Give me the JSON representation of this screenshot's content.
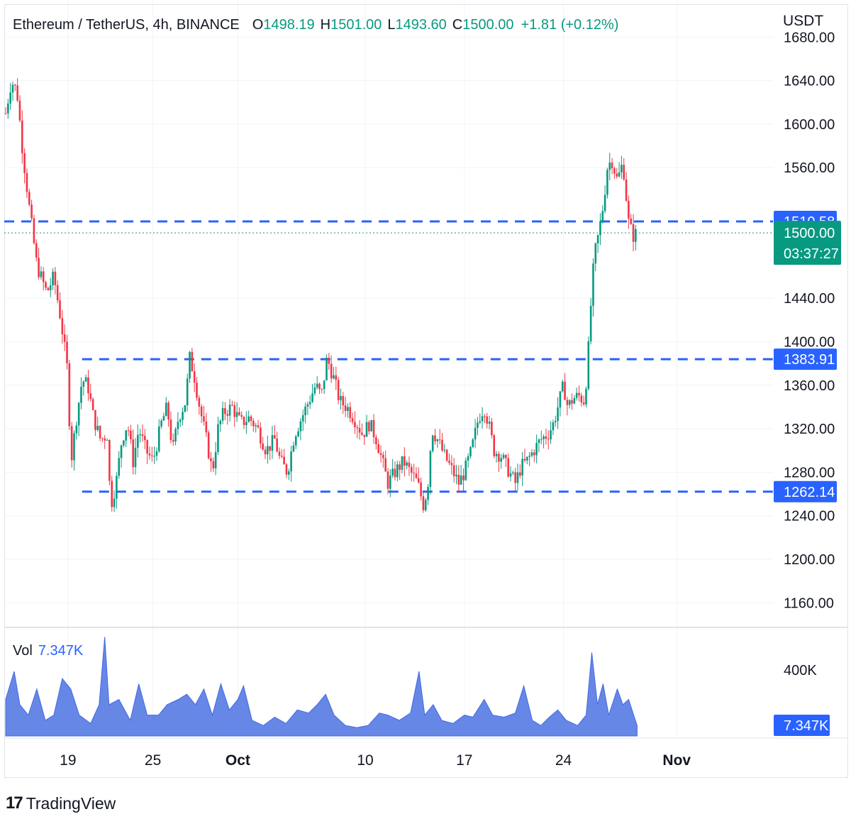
{
  "header": {
    "symbol": "Ethereum / TetherUS, 4h, BINANCE",
    "open_label": "O",
    "open": "1498.19",
    "high_label": "H",
    "high": "1501.00",
    "low_label": "L",
    "low": "1493.60",
    "close_label": "C",
    "close": "1500.00",
    "change": "+1.81 (+0.12%)"
  },
  "currency": "USDT",
  "volume": {
    "label": "Vol",
    "value": "7.347K",
    "axis_tick": "400K",
    "badge": "7.347K"
  },
  "branding": {
    "logo": "17",
    "name": "TradingView"
  },
  "colors": {
    "up": "#089981",
    "down": "#f23645",
    "line": "#2962ff",
    "vol": "#4169e1",
    "price_badge": "#089981"
  },
  "chart_data": {
    "type": "candlestick",
    "y_axis": {
      "ticks": [
        "1680.00",
        "1640.00",
        "1600.00",
        "1560.00",
        "1440.00",
        "1400.00",
        "1360.00",
        "1320.00",
        "1280.00",
        "1240.00",
        "1200.00",
        "1160.00"
      ],
      "tick_values": [
        1680,
        1640,
        1600,
        1560,
        1440,
        1400,
        1360,
        1320,
        1280,
        1240,
        1200,
        1160
      ],
      "range": [
        1140,
        1688
      ]
    },
    "x_axis": {
      "ticks": [
        "19",
        "25",
        "Oct",
        "10",
        "17",
        "24",
        "Nov"
      ],
      "tick_days": [
        19,
        25,
        31,
        40,
        47,
        54,
        62
      ]
    },
    "x_range_days": [
      14.5,
      68.8
    ],
    "levels": [
      {
        "value": 1510.58,
        "label": "1510.58",
        "start_day": 14.5
      },
      {
        "value": 1383.91,
        "label": "1383.91",
        "start_day": 20.0
      },
      {
        "value": 1262.14,
        "label": "1262.14",
        "start_day": 20.0
      }
    ],
    "last_price": {
      "value": 1500.0,
      "label": "1500.00",
      "countdown": "03:37:27"
    },
    "price_path": [
      [
        14.6,
        1610
      ],
      [
        15.0,
        1640
      ],
      [
        15.4,
        1630
      ],
      [
        15.8,
        1575
      ],
      [
        16.3,
        1520
      ],
      [
        16.8,
        1470
      ],
      [
        17.5,
        1445
      ],
      [
        18.0,
        1460
      ],
      [
        18.5,
        1420
      ],
      [
        19.0,
        1370
      ],
      [
        19.2,
        1288
      ],
      [
        19.6,
        1330
      ],
      [
        20.0,
        1365
      ],
      [
        20.4,
        1360
      ],
      [
        20.8,
        1330
      ],
      [
        21.3,
        1310
      ],
      [
        21.8,
        1315
      ],
      [
        22.0,
        1248
      ],
      [
        22.4,
        1270
      ],
      [
        22.8,
        1310
      ],
      [
        23.2,
        1325
      ],
      [
        23.6,
        1290
      ],
      [
        24.0,
        1320
      ],
      [
        24.5,
        1300
      ],
      [
        25.0,
        1290
      ],
      [
        25.6,
        1325
      ],
      [
        26.0,
        1340
      ],
      [
        26.4,
        1300
      ],
      [
        26.8,
        1330
      ],
      [
        27.3,
        1345
      ],
      [
        27.6,
        1385
      ],
      [
        27.9,
        1370
      ],
      [
        28.3,
        1340
      ],
      [
        28.7,
        1315
      ],
      [
        29.2,
        1280
      ],
      [
        29.6,
        1320
      ],
      [
        30.0,
        1335
      ],
      [
        30.6,
        1340
      ],
      [
        31.2,
        1325
      ],
      [
        31.8,
        1330
      ],
      [
        32.4,
        1320
      ],
      [
        33.0,
        1300
      ],
      [
        33.6,
        1310
      ],
      [
        34.0,
        1290
      ],
      [
        34.5,
        1280
      ],
      [
        35.0,
        1315
      ],
      [
        35.5,
        1330
      ],
      [
        36.0,
        1345
      ],
      [
        36.5,
        1360
      ],
      [
        36.9,
        1350
      ],
      [
        37.3,
        1385
      ],
      [
        37.8,
        1365
      ],
      [
        38.2,
        1345
      ],
      [
        38.7,
        1340
      ],
      [
        39.2,
        1330
      ],
      [
        39.8,
        1315
      ],
      [
        40.3,
        1325
      ],
      [
        40.8,
        1310
      ],
      [
        41.2,
        1290
      ],
      [
        41.6,
        1270
      ],
      [
        42.2,
        1282
      ],
      [
        42.7,
        1290
      ],
      [
        43.2,
        1280
      ],
      [
        43.7,
        1270
      ],
      [
        44.1,
        1250
      ],
      [
        44.4,
        1265
      ],
      [
        44.7,
        1320
      ],
      [
        45.1,
        1310
      ],
      [
        45.6,
        1295
      ],
      [
        46.2,
        1280
      ],
      [
        46.6,
        1270
      ],
      [
        47.0,
        1280
      ],
      [
        47.5,
        1300
      ],
      [
        48.0,
        1330
      ],
      [
        48.4,
        1340
      ],
      [
        48.7,
        1325
      ],
      [
        49.1,
        1300
      ],
      [
        49.6,
        1295
      ],
      [
        50.1,
        1282
      ],
      [
        50.6,
        1270
      ],
      [
        51.0,
        1285
      ],
      [
        51.4,
        1290
      ],
      [
        51.9,
        1300
      ],
      [
        52.4,
        1310
      ],
      [
        52.9,
        1315
      ],
      [
        53.3,
        1325
      ],
      [
        53.7,
        1345
      ],
      [
        54.0,
        1360
      ],
      [
        54.3,
        1340
      ],
      [
        54.7,
        1348
      ],
      [
        55.1,
        1350
      ],
      [
        55.5,
        1345
      ],
      [
        55.8,
        1400
      ],
      [
        56.0,
        1450
      ],
      [
        56.2,
        1480
      ],
      [
        56.5,
        1500
      ],
      [
        56.8,
        1525
      ],
      [
        57.1,
        1560
      ],
      [
        57.4,
        1568
      ],
      [
        57.8,
        1548
      ],
      [
        58.2,
        1565
      ],
      [
        58.6,
        1510
      ],
      [
        58.9,
        1497
      ],
      [
        59.2,
        1500
      ]
    ],
    "volume_profile": [
      [
        14.6,
        0.35
      ],
      [
        15.2,
        0.62
      ],
      [
        15.6,
        0.3
      ],
      [
        16.2,
        0.2
      ],
      [
        16.8,
        0.45
      ],
      [
        17.4,
        0.15
      ],
      [
        18.0,
        0.2
      ],
      [
        18.6,
        0.55
      ],
      [
        19.2,
        0.45
      ],
      [
        19.8,
        0.2
      ],
      [
        20.6,
        0.12
      ],
      [
        21.2,
        0.3
      ],
      [
        21.6,
        0.95
      ],
      [
        21.9,
        0.3
      ],
      [
        22.6,
        0.35
      ],
      [
        23.4,
        0.15
      ],
      [
        24.0,
        0.5
      ],
      [
        24.6,
        0.2
      ],
      [
        25.4,
        0.2
      ],
      [
        26.0,
        0.3
      ],
      [
        26.8,
        0.35
      ],
      [
        27.4,
        0.4
      ],
      [
        28.0,
        0.3
      ],
      [
        28.6,
        0.45
      ],
      [
        29.2,
        0.2
      ],
      [
        29.8,
        0.5
      ],
      [
        30.4,
        0.25
      ],
      [
        31.0,
        0.35
      ],
      [
        31.4,
        0.48
      ],
      [
        32.0,
        0.15
      ],
      [
        32.8,
        0.1
      ],
      [
        33.6,
        0.18
      ],
      [
        34.4,
        0.12
      ],
      [
        35.2,
        0.25
      ],
      [
        36.0,
        0.22
      ],
      [
        36.6,
        0.3
      ],
      [
        37.2,
        0.4
      ],
      [
        37.8,
        0.2
      ],
      [
        38.6,
        0.1
      ],
      [
        39.4,
        0.08
      ],
      [
        40.2,
        0.1
      ],
      [
        41.0,
        0.22
      ],
      [
        41.6,
        0.2
      ],
      [
        42.4,
        0.15
      ],
      [
        43.2,
        0.22
      ],
      [
        43.8,
        0.62
      ],
      [
        44.2,
        0.2
      ],
      [
        44.8,
        0.3
      ],
      [
        45.4,
        0.15
      ],
      [
        46.2,
        0.12
      ],
      [
        47.0,
        0.2
      ],
      [
        47.6,
        0.18
      ],
      [
        48.4,
        0.35
      ],
      [
        49.0,
        0.2
      ],
      [
        49.8,
        0.18
      ],
      [
        50.6,
        0.22
      ],
      [
        51.2,
        0.48
      ],
      [
        51.8,
        0.15
      ],
      [
        52.4,
        0.1
      ],
      [
        53.0,
        0.18
      ],
      [
        53.6,
        0.25
      ],
      [
        54.2,
        0.15
      ],
      [
        55.0,
        0.1
      ],
      [
        55.6,
        0.2
      ],
      [
        56.0,
        0.8
      ],
      [
        56.4,
        0.3
      ],
      [
        56.8,
        0.5
      ],
      [
        57.2,
        0.2
      ],
      [
        57.8,
        0.45
      ],
      [
        58.2,
        0.3
      ],
      [
        58.6,
        0.35
      ],
      [
        59.2,
        0.1
      ]
    ]
  }
}
